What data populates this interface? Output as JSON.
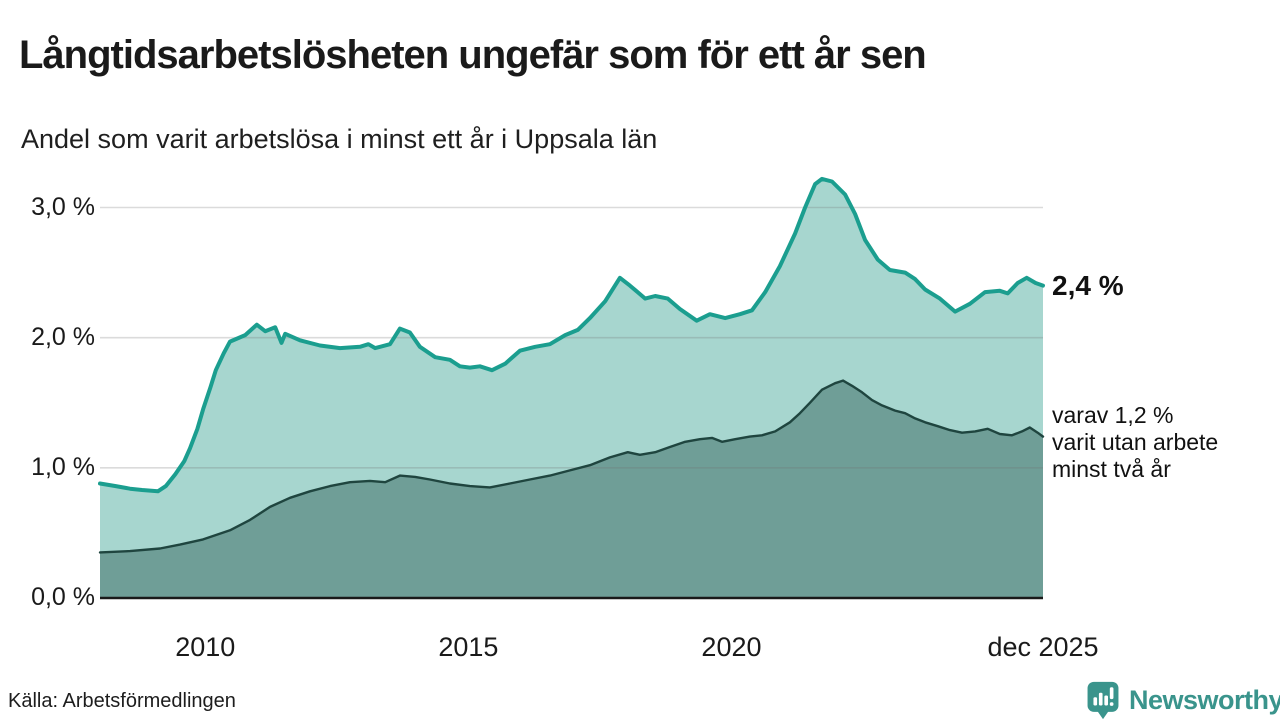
{
  "page": {
    "title": "Långtidsarbetslösheten ungefär som för ett år sen",
    "subtitle": "Andel som varit arbetslösa i minst ett år i Uppsala län",
    "source": "Källa: Arbetsförmedlingen",
    "brand_name": "Newsworthy"
  },
  "annotations": {
    "latest_value_label": "2,4 %",
    "secondary_label": "varav 1,2 %\nvarit utan arbete\nminst två år"
  },
  "colors": {
    "line_one_year": "#1b9e8f",
    "fill_one_year": "#a7d6cf",
    "line_two_years": "#1f453f",
    "fill_two_years": "#6f9e97",
    "gridline": "rgba(110,110,110,0.25)",
    "axis": "#1a1a1a",
    "brand_teal": "#3a948c",
    "text": "#1a1a1a"
  },
  "chart_data": {
    "type": "area",
    "title": "Långtidsarbetslösheten ungefär som för ett år sen",
    "subtitle": "Andel som varit arbetslösa i minst ett år i Uppsala län",
    "unit": "%",
    "grid": "horizontal",
    "legend_position": "right-annotations",
    "xlim": [
      2008.0,
      2025.92
    ],
    "ylim": [
      0,
      3.3
    ],
    "y_ticks": [
      {
        "label": "0,0 %",
        "value": 0.0
      },
      {
        "label": "1,0 %",
        "value": 1.0
      },
      {
        "label": "2,0 %",
        "value": 2.0
      },
      {
        "label": "3,0 %",
        "value": 3.0
      }
    ],
    "x_ticks": [
      {
        "label": "2010",
        "value": 2010.0
      },
      {
        "label": "2015",
        "value": 2015.0
      },
      {
        "label": "2020",
        "value": 2020.0
      },
      {
        "label": "dec 2025",
        "value": 2025.92
      }
    ],
    "series": [
      {
        "name": "Andel arbetslösa minst ett år",
        "end_value": 2.4,
        "end_label": "2,4 %",
        "line_color": "#1b9e8f",
        "fill_color": "#a7d6cf",
        "line_width": 4,
        "points": [
          [
            2008.0,
            0.88
          ],
          [
            2008.3,
            0.86
          ],
          [
            2008.57,
            0.84
          ],
          [
            2008.8,
            0.83
          ],
          [
            2009.1,
            0.82
          ],
          [
            2009.25,
            0.86
          ],
          [
            2009.43,
            0.95
          ],
          [
            2009.6,
            1.05
          ],
          [
            2009.71,
            1.15
          ],
          [
            2009.85,
            1.3
          ],
          [
            2009.96,
            1.45
          ],
          [
            2010.1,
            1.62
          ],
          [
            2010.2,
            1.75
          ],
          [
            2010.35,
            1.88
          ],
          [
            2010.47,
            1.97
          ],
          [
            2010.76,
            2.02
          ],
          [
            2010.98,
            2.1
          ],
          [
            2011.14,
            2.05
          ],
          [
            2011.33,
            2.08
          ],
          [
            2011.45,
            1.96
          ],
          [
            2011.52,
            2.03
          ],
          [
            2011.8,
            1.98
          ],
          [
            2012.18,
            1.94
          ],
          [
            2012.56,
            1.92
          ],
          [
            2012.94,
            1.93
          ],
          [
            2013.1,
            1.95
          ],
          [
            2013.23,
            1.92
          ],
          [
            2013.51,
            1.95
          ],
          [
            2013.7,
            2.07
          ],
          [
            2013.89,
            2.04
          ],
          [
            2014.08,
            1.93
          ],
          [
            2014.37,
            1.85
          ],
          [
            2014.65,
            1.83
          ],
          [
            2014.84,
            1.78
          ],
          [
            2015.03,
            1.77
          ],
          [
            2015.22,
            1.78
          ],
          [
            2015.45,
            1.75
          ],
          [
            2015.7,
            1.8
          ],
          [
            2015.98,
            1.9
          ],
          [
            2016.27,
            1.93
          ],
          [
            2016.55,
            1.95
          ],
          [
            2016.84,
            2.02
          ],
          [
            2017.08,
            2.06
          ],
          [
            2017.31,
            2.15
          ],
          [
            2017.6,
            2.28
          ],
          [
            2017.88,
            2.46
          ],
          [
            2018.07,
            2.4
          ],
          [
            2018.36,
            2.3
          ],
          [
            2018.55,
            2.32
          ],
          [
            2018.79,
            2.3
          ],
          [
            2019.02,
            2.22
          ],
          [
            2019.34,
            2.13
          ],
          [
            2019.59,
            2.18
          ],
          [
            2019.88,
            2.15
          ],
          [
            2020.16,
            2.18
          ],
          [
            2020.39,
            2.21
          ],
          [
            2020.64,
            2.35
          ],
          [
            2020.92,
            2.55
          ],
          [
            2021.21,
            2.8
          ],
          [
            2021.4,
            3.0
          ],
          [
            2021.59,
            3.18
          ],
          [
            2021.72,
            3.22
          ],
          [
            2021.91,
            3.2
          ],
          [
            2022.16,
            3.1
          ],
          [
            2022.35,
            2.95
          ],
          [
            2022.54,
            2.75
          ],
          [
            2022.78,
            2.6
          ],
          [
            2023.01,
            2.52
          ],
          [
            2023.3,
            2.5
          ],
          [
            2023.49,
            2.45
          ],
          [
            2023.68,
            2.37
          ],
          [
            2023.96,
            2.3
          ],
          [
            2024.25,
            2.2
          ],
          [
            2024.53,
            2.26
          ],
          [
            2024.82,
            2.35
          ],
          [
            2025.1,
            2.36
          ],
          [
            2025.25,
            2.34
          ],
          [
            2025.44,
            2.42
          ],
          [
            2025.61,
            2.46
          ],
          [
            2025.78,
            2.42
          ],
          [
            2025.92,
            2.4
          ]
        ]
      },
      {
        "name": "varav utan arbete minst två år",
        "end_value": 1.2,
        "end_label": "varav 1,2 % varit utan arbete minst två år",
        "line_color": "#1f453f",
        "fill_color": "#6f9e97",
        "line_width": 2.4,
        "points": [
          [
            2008.0,
            0.35
          ],
          [
            2008.57,
            0.36
          ],
          [
            2009.14,
            0.38
          ],
          [
            2009.52,
            0.41
          ],
          [
            2009.96,
            0.45
          ],
          [
            2010.47,
            0.52
          ],
          [
            2010.85,
            0.6
          ],
          [
            2011.23,
            0.7
          ],
          [
            2011.61,
            0.77
          ],
          [
            2011.99,
            0.82
          ],
          [
            2012.37,
            0.86
          ],
          [
            2012.75,
            0.89
          ],
          [
            2013.13,
            0.9
          ],
          [
            2013.42,
            0.89
          ],
          [
            2013.7,
            0.94
          ],
          [
            2013.99,
            0.93
          ],
          [
            2014.27,
            0.91
          ],
          [
            2014.65,
            0.88
          ],
          [
            2015.03,
            0.86
          ],
          [
            2015.41,
            0.85
          ],
          [
            2015.79,
            0.88
          ],
          [
            2016.17,
            0.91
          ],
          [
            2016.55,
            0.94
          ],
          [
            2016.93,
            0.98
          ],
          [
            2017.31,
            1.02
          ],
          [
            2017.69,
            1.08
          ],
          [
            2018.03,
            1.12
          ],
          [
            2018.26,
            1.1
          ],
          [
            2018.55,
            1.12
          ],
          [
            2018.83,
            1.16
          ],
          [
            2019.12,
            1.2
          ],
          [
            2019.4,
            1.22
          ],
          [
            2019.63,
            1.23
          ],
          [
            2019.82,
            1.2
          ],
          [
            2020.07,
            1.22
          ],
          [
            2020.35,
            1.24
          ],
          [
            2020.58,
            1.25
          ],
          [
            2020.83,
            1.28
          ],
          [
            2021.11,
            1.35
          ],
          [
            2021.3,
            1.42
          ],
          [
            2021.49,
            1.5
          ],
          [
            2021.72,
            1.6
          ],
          [
            2021.97,
            1.65
          ],
          [
            2022.12,
            1.67
          ],
          [
            2022.29,
            1.63
          ],
          [
            2022.48,
            1.58
          ],
          [
            2022.67,
            1.52
          ],
          [
            2022.86,
            1.48
          ],
          [
            2023.11,
            1.44
          ],
          [
            2023.3,
            1.42
          ],
          [
            2023.49,
            1.38
          ],
          [
            2023.68,
            1.35
          ],
          [
            2023.92,
            1.32
          ],
          [
            2024.15,
            1.29
          ],
          [
            2024.38,
            1.27
          ],
          [
            2024.63,
            1.28
          ],
          [
            2024.87,
            1.3
          ],
          [
            2025.1,
            1.26
          ],
          [
            2025.33,
            1.25
          ],
          [
            2025.52,
            1.28
          ],
          [
            2025.67,
            1.31
          ],
          [
            2025.82,
            1.27
          ],
          [
            2025.92,
            1.24
          ]
        ]
      }
    ]
  }
}
